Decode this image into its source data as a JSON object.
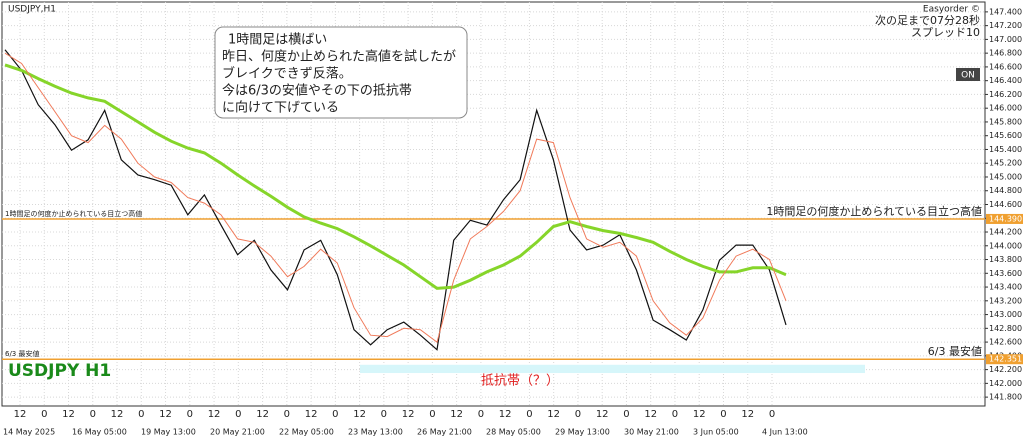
{
  "window": {
    "symbol": "USDJPY,H1",
    "indicator": "Easyorder ©",
    "countdown": "次の足まで07分28秒",
    "spread": "スプレッド10",
    "button": "ON",
    "watermark": "USDJPY H1"
  },
  "note": [
    "1時間足は横ばい",
    "昨日、何度か止められた高値を試したが",
    "ブレイクできず反落。",
    "今は6/3の安値やその下の抵抗帯",
    "に向けて下げている"
  ],
  "chart_data": {
    "type": "line",
    "ylim": [
      141.7,
      147.5
    ],
    "yticks": [
      {
        "value": 141.8,
        "label": "141.800"
      },
      {
        "value": 142.0,
        "label": "142.000"
      },
      {
        "value": 142.2,
        "label": "142.200"
      },
      {
        "value": 142.4,
        "label": "142.400"
      },
      {
        "value": 142.6,
        "label": "142.600"
      },
      {
        "value": 142.8,
        "label": "142.800"
      },
      {
        "value": 143.0,
        "label": "143.000"
      },
      {
        "value": 143.2,
        "label": "143.200"
      },
      {
        "value": 143.4,
        "label": "143.400"
      },
      {
        "value": 143.6,
        "label": "143.600"
      },
      {
        "value": 143.8,
        "label": "143.800"
      },
      {
        "value": 144.0,
        "label": "144.000"
      },
      {
        "value": 144.2,
        "label": "144.200"
      },
      {
        "value": 144.4,
        "label": "144.400"
      },
      {
        "value": 144.6,
        "label": "144.600"
      },
      {
        "value": 144.8,
        "label": "144.800"
      },
      {
        "value": 145.0,
        "label": "145.000"
      },
      {
        "value": 145.2,
        "label": "145.200"
      },
      {
        "value": 145.4,
        "label": "145.400"
      },
      {
        "value": 145.6,
        "label": "145.600"
      },
      {
        "value": 145.8,
        "label": "145.800"
      },
      {
        "value": 146.0,
        "label": "146.000"
      },
      {
        "value": 146.2,
        "label": "146.200"
      },
      {
        "value": 146.4,
        "label": "146.400"
      },
      {
        "value": 146.6,
        "label": "146.600"
      },
      {
        "value": 146.8,
        "label": "146.800"
      },
      {
        "value": 147.0,
        "label": "147.000"
      },
      {
        "value": 147.2,
        "label": "147.200"
      },
      {
        "value": 147.4,
        "label": "147.400"
      }
    ],
    "hour_labels": [
      12,
      0,
      12,
      0,
      12,
      0,
      12,
      0,
      12,
      0,
      12,
      0,
      12,
      0,
      12,
      0,
      12,
      0,
      12,
      0,
      12,
      0,
      12,
      0,
      12,
      0,
      12,
      0,
      12,
      0,
      12,
      0
    ],
    "date_labels": [
      "14 May 2025",
      "16 May 05:00",
      "19 May 13:00",
      "20 May 21:00",
      "22 May 05:00",
      "23 May 13:00",
      "26 May 21:00",
      "28 May 05:00",
      "29 May 13:00",
      "30 May 21:00",
      "3 Jun 05:00",
      "4 Jun 13:00"
    ],
    "series": [
      {
        "color": "#111111",
        "values": [
          146.85,
          146.55,
          146.05,
          145.76,
          145.39,
          145.54,
          145.97,
          145.25,
          145.03,
          144.96,
          144.88,
          144.45,
          144.74,
          144.3,
          143.87,
          144.08,
          143.65,
          143.36,
          143.94,
          144.08,
          143.58,
          142.78,
          142.56,
          142.78,
          142.89,
          142.7,
          142.49,
          144.08,
          144.37,
          144.3,
          144.67,
          144.96,
          145.97,
          145.25,
          144.23,
          143.94,
          144.01,
          144.16,
          143.65,
          142.92,
          142.78,
          142.63,
          143.07,
          143.79,
          144.01,
          144.01,
          143.65,
          142.85
        ]
      },
      {
        "color": "#86d52a",
        "values": [
          146.63,
          146.55,
          146.43,
          146.32,
          146.22,
          146.15,
          146.1,
          145.95,
          145.8,
          145.65,
          145.52,
          145.42,
          145.35,
          145.2,
          145.03,
          144.87,
          144.72,
          144.56,
          144.42,
          144.33,
          144.25,
          144.13,
          144.0,
          143.86,
          143.72,
          143.55,
          143.38,
          143.4,
          143.5,
          143.62,
          143.72,
          143.85,
          144.05,
          144.28,
          144.35,
          144.28,
          144.22,
          144.18,
          144.12,
          144.05,
          143.92,
          143.8,
          143.7,
          143.62,
          143.62,
          143.68,
          143.68,
          143.58
        ]
      },
      {
        "color": "#f07a5a",
        "values": [
          146.8,
          146.65,
          146.3,
          145.95,
          145.6,
          145.5,
          145.75,
          145.55,
          145.2,
          145.0,
          144.92,
          144.7,
          144.62,
          144.45,
          144.1,
          144.05,
          143.85,
          143.55,
          143.7,
          143.95,
          143.75,
          143.1,
          142.7,
          142.68,
          142.8,
          142.78,
          142.6,
          143.5,
          144.1,
          144.28,
          144.5,
          144.8,
          145.55,
          145.5,
          144.7,
          144.1,
          143.98,
          144.05,
          143.85,
          143.2,
          142.88,
          142.7,
          142.95,
          143.5,
          143.85,
          143.95,
          143.8,
          143.2
        ]
      }
    ],
    "levels": [
      {
        "value": 144.39,
        "label": "144.390",
        "name": "1時間足の何度か止められている目立つ高値"
      },
      {
        "value": 142.351,
        "label": "142.351",
        "name": "6/3 最安値"
      }
    ],
    "zone": {
      "label": "抵抗帯（？）",
      "low": 142.15,
      "high": 142.27
    }
  }
}
